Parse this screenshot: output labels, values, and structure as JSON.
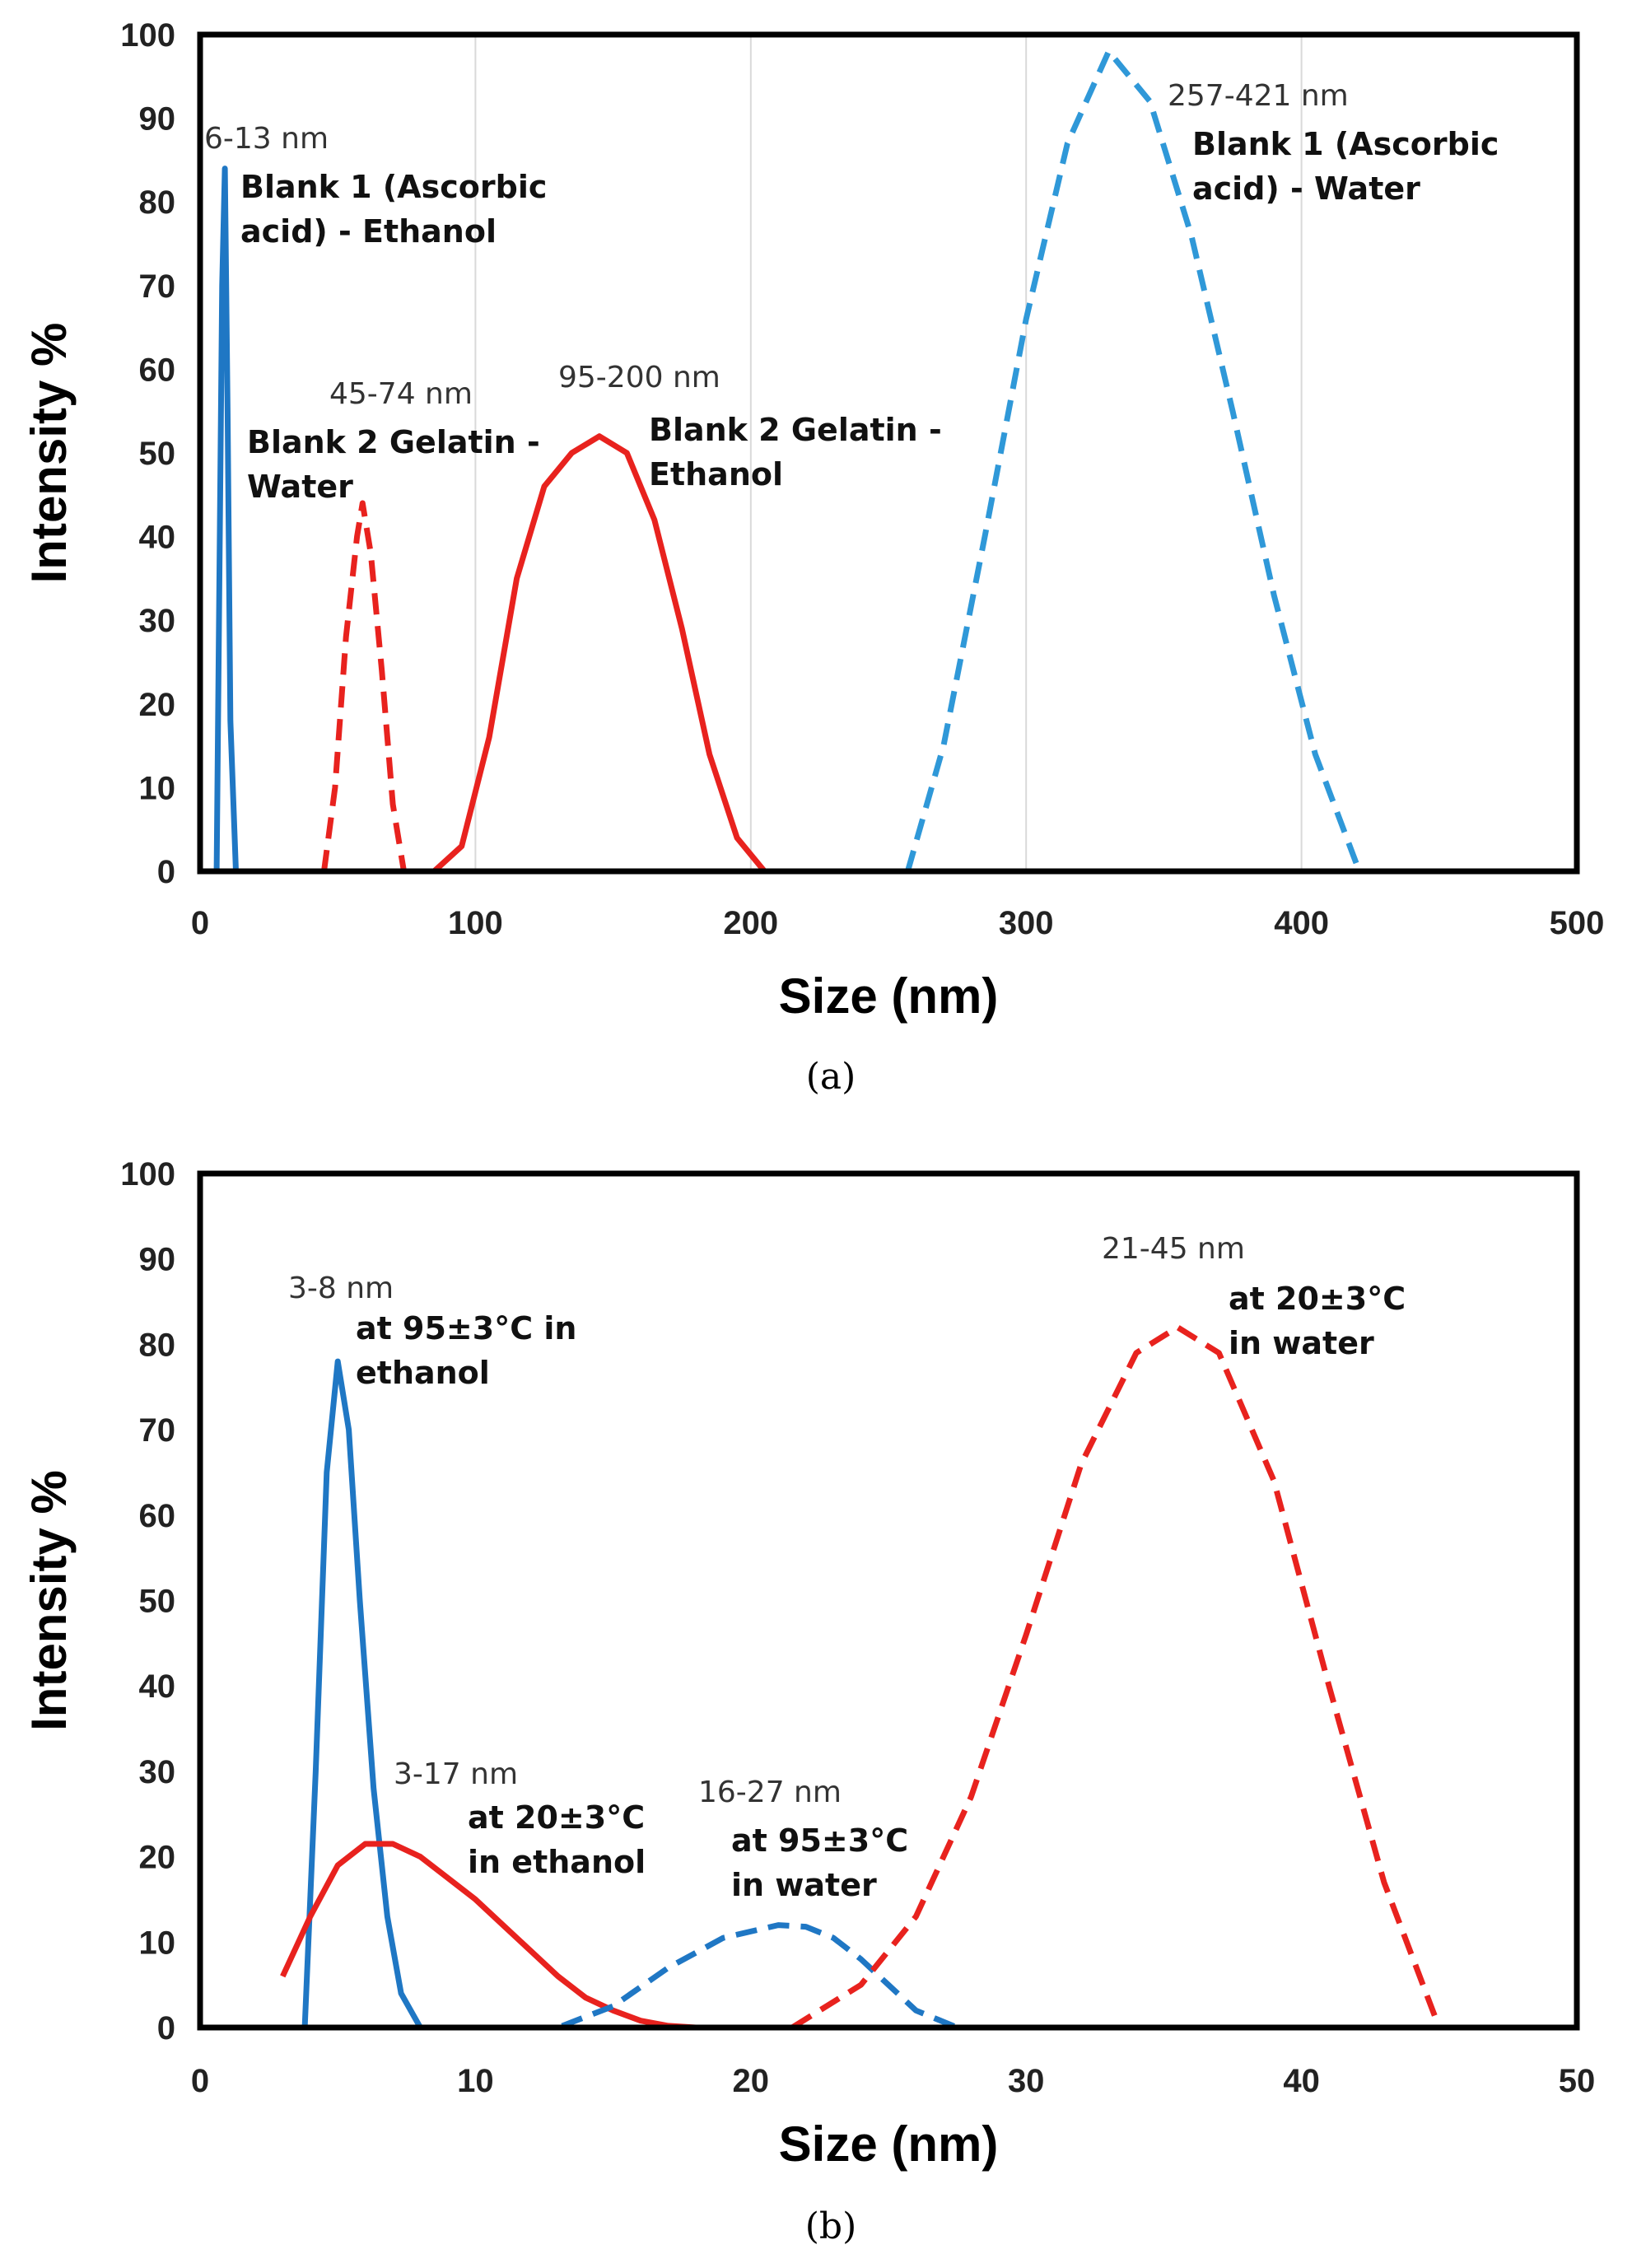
{
  "chart_data": [
    {
      "type": "line",
      "panel": "(a)",
      "xlabel": "Size (nm)",
      "ylabel": "Intensity %",
      "xlim": [
        0,
        500
      ],
      "ylim": [
        0,
        100
      ],
      "xticks": [
        0,
        100,
        200,
        300,
        400,
        500
      ],
      "yticks": [
        0,
        10,
        20,
        30,
        40,
        50,
        60,
        70,
        80,
        90,
        100
      ],
      "grid": true,
      "series": [
        {
          "name": "Blank 1 (Ascorbic acid) - Ethanol",
          "range_label": "6-13 nm",
          "label_lines": [
            "Blank 1 (Ascorbic",
            "acid) - Ethanol"
          ],
          "color": "#1f77c4",
          "dashed": false,
          "x": [
            0,
            6,
            8,
            9,
            10,
            11,
            13,
            500
          ],
          "y": [
            0,
            0,
            70,
            84,
            55,
            18,
            0,
            0
          ]
        },
        {
          "name": "Blank 2 Gelatin - Water",
          "range_label": "45-74 nm",
          "label_lines": [
            "Blank 2 Gelatin -",
            "Water"
          ],
          "color": "#e8221e",
          "dashed": true,
          "x": [
            45,
            49,
            53,
            57,
            59,
            62,
            66,
            70,
            74
          ],
          "y": [
            0,
            10,
            28,
            40,
            44,
            38,
            24,
            8,
            0
          ]
        },
        {
          "name": "Blank 2 Gelatin - Ethanol",
          "range_label": "95-200 nm",
          "label_lines": [
            "Blank 2 Gelatin -",
            "Ethanol"
          ],
          "color": "#e8221e",
          "dashed": false,
          "x": [
            0,
            85,
            95,
            105,
            115,
            125,
            135,
            145,
            155,
            165,
            175,
            185,
            195,
            205,
            500
          ],
          "y": [
            0,
            0,
            3,
            16,
            35,
            46,
            50,
            52,
            50,
            42,
            29,
            14,
            4,
            0,
            0
          ]
        },
        {
          "name": "Blank 1 (Ascorbic acid) - Water",
          "range_label": "257-421 nm",
          "label_lines": [
            "Blank 1 (Ascorbic",
            "acid) - Water"
          ],
          "color": "#2f98d8",
          "dashed": true,
          "x": [
            257,
            270,
            285,
            300,
            315,
            330,
            345,
            360,
            375,
            390,
            405,
            421
          ],
          "y": [
            0,
            15,
            40,
            66,
            87,
            98,
            92,
            76,
            55,
            33,
            14,
            0
          ]
        }
      ]
    },
    {
      "type": "line",
      "panel": "(b)",
      "xlabel": "Size (nm)",
      "ylabel": "Intensity %",
      "xlim": [
        0,
        50
      ],
      "ylim": [
        0,
        100
      ],
      "xticks": [
        0,
        10,
        20,
        30,
        40,
        50
      ],
      "yticks": [
        0,
        10,
        20,
        30,
        40,
        50,
        60,
        70,
        80,
        90,
        100
      ],
      "grid": false,
      "series": [
        {
          "name": "at 95±3°C in ethanol",
          "range_label": "3-8 nm",
          "label_lines": [
            "at 95±3°C in",
            "ethanol"
          ],
          "color": "#1f77c4",
          "dashed": false,
          "x": [
            3,
            3.8,
            4.2,
            4.6,
            5.0,
            5.4,
            5.8,
            6.3,
            6.8,
            7.3,
            8.0,
            50
          ],
          "y": [
            0,
            0,
            30,
            65,
            78,
            70,
            50,
            28,
            13,
            4,
            0,
            0
          ]
        },
        {
          "name": "at 20±3°C in ethanol",
          "range_label": "3-17 nm",
          "label_lines": [
            "at 20±3°C",
            "in ethanol"
          ],
          "color": "#e8221e",
          "dashed": false,
          "x": [
            3,
            4,
            5,
            6,
            7,
            8,
            9,
            10,
            11,
            12,
            13,
            14,
            15,
            16,
            17,
            18
          ],
          "y": [
            6,
            13,
            19,
            21.5,
            21.5,
            20,
            17.5,
            15,
            12,
            9,
            6,
            3.5,
            2,
            0.8,
            0.2,
            0
          ]
        },
        {
          "name": "at 95±3°C in water",
          "range_label": "16-27 nm",
          "label_lines": [
            "at 95±3°C",
            "in water"
          ],
          "color": "#1f77c4",
          "dashed": true,
          "x": [
            0,
            13,
            15,
            17,
            19,
            21,
            22,
            23,
            24,
            25,
            26,
            27.5
          ],
          "y": [
            0,
            0,
            2.5,
            7,
            10.5,
            12,
            11.8,
            10.5,
            8,
            5,
            2,
            0
          ]
        },
        {
          "name": "at 20±3°C in water",
          "range_label": "21-45 nm",
          "label_lines": [
            "at 20±3°C",
            "in water"
          ],
          "color": "#e8221e",
          "dashed": true,
          "x": [
            0,
            21.5,
            24,
            26,
            28,
            30,
            32,
            34,
            35.5,
            37,
            39,
            41,
            43,
            45
          ],
          "y": [
            0,
            0,
            5,
            13,
            27,
            46,
            66,
            79,
            82,
            79,
            64,
            40,
            17,
            0
          ]
        }
      ]
    }
  ]
}
